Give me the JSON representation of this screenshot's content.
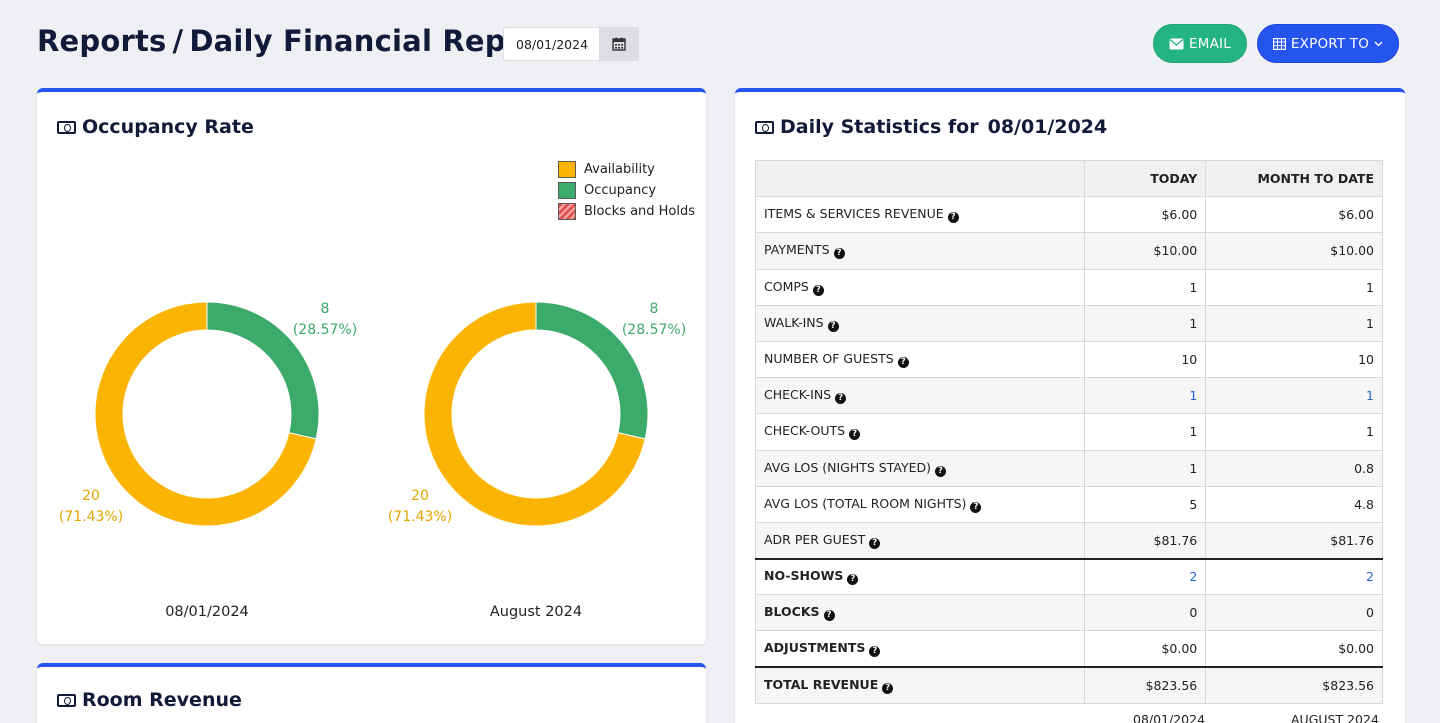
{
  "header": {
    "breadcrumb_root": "Reports",
    "separator": "/",
    "page_title": "Daily Financial Report",
    "date_value": "08/01/2024",
    "email_label": "EMAIL",
    "export_label": "EXPORT TO"
  },
  "occupancy": {
    "title": "Occupancy Rate",
    "legend": [
      {
        "label": "Availability",
        "color": "#fbb402"
      },
      {
        "label": "Occupancy",
        "color": "#3caa6a"
      },
      {
        "label": "Blocks and Holds",
        "color": "#e4524f"
      }
    ],
    "charts": [
      {
        "caption": "08/01/2024",
        "occupancy_value": "8",
        "occupancy_pct": "(28.57%)",
        "availability_value": "20",
        "availability_pct": "(71.43%)"
      },
      {
        "caption": "August 2024",
        "occupancy_value": "8",
        "occupancy_pct": "(28.57%)",
        "availability_value": "20",
        "availability_pct": "(71.43%)"
      }
    ]
  },
  "chart_data": [
    {
      "type": "pie",
      "title": "08/01/2024",
      "categories": [
        "Availability",
        "Occupancy"
      ],
      "values": [
        20,
        8
      ],
      "percent": [
        71.43,
        28.57
      ],
      "colors": [
        "#fbb402",
        "#3caa6a"
      ]
    },
    {
      "type": "pie",
      "title": "August 2024",
      "categories": [
        "Availability",
        "Occupancy"
      ],
      "values": [
        20,
        8
      ],
      "percent": [
        71.43,
        28.57
      ],
      "colors": [
        "#fbb402",
        "#3caa6a"
      ]
    }
  ],
  "room_revenue": {
    "title": "Room Revenue"
  },
  "stats": {
    "title_prefix": "Daily Statistics for",
    "date": "08/01/2024",
    "col_today": "TODAY",
    "col_mtd": "MONTH TO DATE",
    "rows": [
      {
        "label": "ITEMS & SERVICES REVENUE",
        "today": "$6.00",
        "mtd": "$6.00"
      },
      {
        "label": "PAYMENTS",
        "today": "$10.00",
        "mtd": "$10.00"
      },
      {
        "label": "COMPS",
        "today": "1",
        "mtd": "1"
      },
      {
        "label": "WALK-INS",
        "today": "1",
        "mtd": "1"
      },
      {
        "label": "NUMBER OF GUESTS",
        "today": "10",
        "mtd": "10"
      },
      {
        "label": "CHECK-INS",
        "today": "1",
        "mtd": "1"
      },
      {
        "label": "CHECK-OUTS",
        "today": "1",
        "mtd": "1"
      },
      {
        "label": "AVG LOS (NIGHTS STAYED)",
        "today": "1",
        "mtd": "0.8"
      },
      {
        "label": "AVG LOS (TOTAL ROOM NIGHTS)",
        "today": "5",
        "mtd": "4.8"
      },
      {
        "label": "ADR PER GUEST",
        "today": "$81.76",
        "mtd": "$81.76"
      },
      {
        "label": "NO-SHOWS",
        "today": "2",
        "mtd": "2"
      },
      {
        "label": "BLOCKS",
        "today": "0",
        "mtd": "0"
      },
      {
        "label": "ADJUSTMENTS",
        "today": "$0.00",
        "mtd": "$0.00"
      },
      {
        "label": "TOTAL REVENUE",
        "today": "$823.56",
        "mtd": "$823.56"
      }
    ],
    "footer_today": "08/01/2024",
    "footer_mtd": "AUGUST 2024"
  }
}
